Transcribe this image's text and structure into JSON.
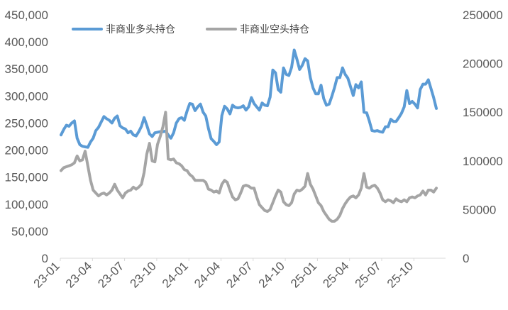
{
  "chart_data": {
    "type": "line",
    "grid": false,
    "legend_position": "top-left",
    "x_tick_labels": [
      "23-01",
      "23-04",
      "23-07",
      "23-10",
      "24-01",
      "24-04",
      "24-07",
      "24-10",
      "25-01",
      "25-04",
      "25-07",
      "25-10"
    ],
    "y_left": {
      "ticks": [
        "0",
        "50,000",
        "100,000",
        "150,000",
        "200,000",
        "250,000",
        "300,000",
        "350,000",
        "400,000",
        "450,000"
      ],
      "ylim": [
        0,
        450000
      ]
    },
    "y_right": {
      "ticks": [
        "0",
        "50000",
        "100000",
        "150000",
        "200000",
        "250000"
      ],
      "ylim": [
        0,
        250000
      ]
    },
    "series": [
      {
        "name": "非商业多头持仓",
        "axis": "left",
        "color": "#5B9BD5",
        "values": [
          228000,
          238000,
          246000,
          244000,
          250000,
          254000,
          222000,
          210000,
          207000,
          206000,
          205000,
          215000,
          222000,
          236000,
          242000,
          252000,
          262000,
          258000,
          255000,
          250000,
          259000,
          263000,
          245000,
          241000,
          239000,
          232000,
          235000,
          228000,
          226000,
          234000,
          244000,
          260000,
          246000,
          230000,
          225000,
          232000,
          233000,
          234000,
          234000,
          235000,
          228000,
          222000,
          232000,
          250000,
          258000,
          260000,
          255000,
          272000,
          286000,
          285000,
          273000,
          280000,
          285000,
          270000,
          263000,
          240000,
          221000,
          216000,
          210000,
          215000,
          264000,
          281000,
          276000,
          267000,
          283000,
          279000,
          278000,
          279000,
          282000,
          274000,
          280000,
          297000,
          286000,
          280000,
          274000,
          287000,
          283000,
          282000,
          298000,
          348000,
          343000,
          312000,
          307000,
          352000,
          340000,
          338000,
          353000,
          385000,
          368000,
          349000,
          357000,
          369000,
          365000,
          334000,
          315000,
          304000,
          304000,
          320000,
          295000,
          283000,
          285000,
          299000,
          315000,
          334000,
          334000,
          352000,
          340000,
          333000,
          317000,
          301000,
          321000,
          315000,
          326000,
          270000,
          269000,
          254000,
          236000,
          235000,
          236000,
          234000,
          233000,
          243000,
          243000,
          257000,
          253000,
          253000,
          260000,
          268000,
          280000,
          310000,
          286000,
          290000,
          285000,
          278000,
          312000,
          322000,
          322000,
          330000,
          314000,
          297000,
          277000
        ]
      },
      {
        "name": "非商业空头持仓",
        "axis": "right",
        "color": "#A5A5A5",
        "values": [
          90000,
          93000,
          94000,
          95000,
          96000,
          98000,
          105000,
          100000,
          101000,
          110000,
          95000,
          80000,
          70000,
          67000,
          64000,
          66000,
          67000,
          65000,
          67000,
          70000,
          76000,
          70000,
          66000,
          62000,
          67000,
          69000,
          70000,
          73000,
          71000,
          73000,
          76000,
          88000,
          107000,
          118000,
          100000,
          99000,
          117000,
          125000,
          135000,
          150000,
          102000,
          101000,
          102000,
          98000,
          97000,
          95000,
          91000,
          90000,
          86000,
          84000,
          80000,
          80000,
          80000,
          80000,
          78000,
          71000,
          70000,
          68000,
          69000,
          67000,
          76000,
          80000,
          78000,
          70000,
          63000,
          60000,
          61000,
          67000,
          74000,
          75000,
          74000,
          72000,
          72000,
          63000,
          55000,
          52000,
          49000,
          48000,
          50000,
          57000,
          64000,
          70000,
          68000,
          58000,
          55000,
          54000,
          57000,
          66000,
          70000,
          69000,
          71000,
          74000,
          87000,
          76000,
          71000,
          64000,
          57000,
          54000,
          48000,
          44000,
          40000,
          38000,
          38000,
          40000,
          44000,
          51000,
          56000,
          60000,
          63000,
          64000,
          62000,
          65000,
          72000,
          87000,
          73000,
          72000,
          74000,
          75000,
          72000,
          67000,
          60000,
          58000,
          60000,
          59000,
          57000,
          61000,
          59000,
          58000,
          60000,
          58000,
          62000,
          63000,
          62000,
          64000,
          65000,
          69000,
          65000,
          70000,
          70000,
          68000,
          72000
        ]
      }
    ]
  }
}
